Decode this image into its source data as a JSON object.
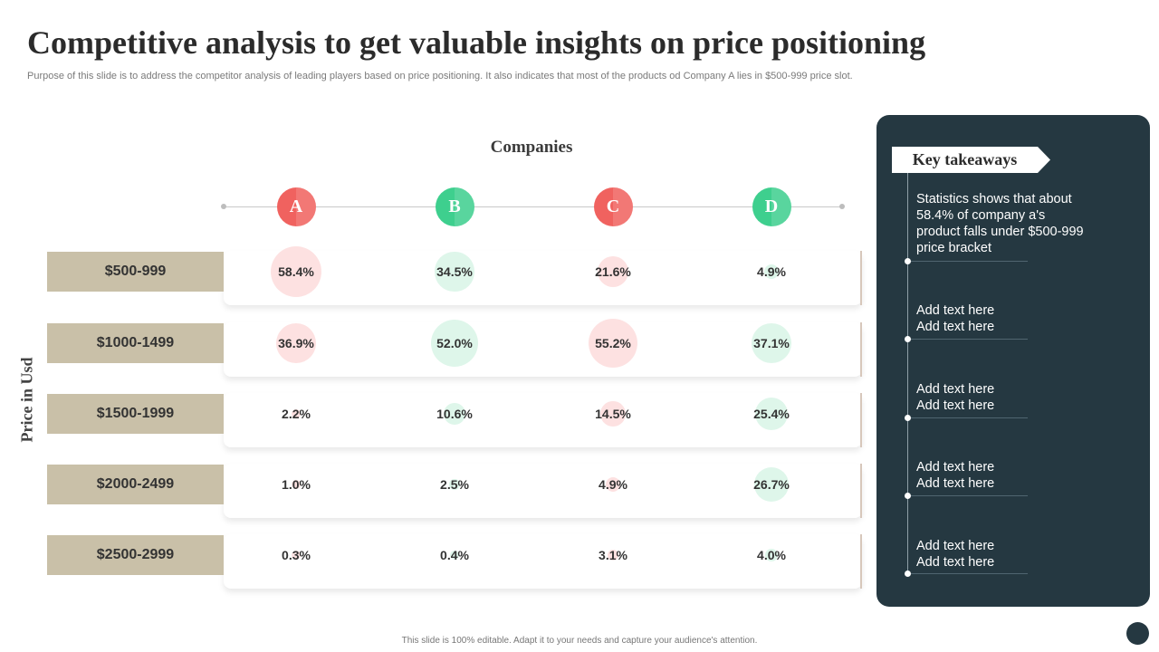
{
  "slide": {
    "title": "Competitive analysis to get valuable insights on price positioning",
    "subtitle": "Purpose of this slide is to address the competitor analysis of leading players based on  price positioning. It also indicates that most of the products od Company A lies in $500-999 price slot.",
    "footer": "This slide is 100% editable.  Adapt it to your needs and capture your audience's attention."
  },
  "chart_data": {
    "type": "table",
    "title": "Companies",
    "ylabel": "Price in Usd",
    "companies": [
      "A",
      "B",
      "C",
      "D"
    ],
    "company_colors": [
      "#f0625f",
      "#3ecf8e",
      "#f0625f",
      "#3ecf8e"
    ],
    "bubble_colors": [
      "#fde1e1",
      "#def6ea",
      "#fde1e1",
      "#def6ea"
    ],
    "price_ranges": [
      "$500-999",
      "$1000-1499",
      "$1500-1999",
      "$2000-2499",
      "$2500-2999"
    ],
    "unit": "%",
    "values": [
      [
        58.4,
        34.5,
        21.6,
        4.9
      ],
      [
        36.9,
        52.0,
        55.2,
        37.1
      ],
      [
        2.2,
        10.6,
        14.5,
        25.4
      ],
      [
        1.0,
        2.5,
        4.9,
        26.7
      ],
      [
        0.3,
        0.4,
        3.1,
        4.0
      ]
    ],
    "labels": [
      [
        "58.4%",
        "34.5%",
        "21.6%",
        "4.9%"
      ],
      [
        "36.9%",
        "52.0%",
        "55.2%",
        "37.1%"
      ],
      [
        "2.2%",
        "10.6%",
        "14.5%",
        "25.4%"
      ],
      [
        "1.0%",
        "2.5%",
        "4.9%",
        "26.7%"
      ],
      [
        "0.3%",
        "0.4%",
        "3.1%",
        "4.0%"
      ]
    ]
  },
  "takeaways": {
    "title": "Key takeaways",
    "items": [
      [
        "Statistics shows that about",
        "58.4% of company a's",
        "product falls under $500-999",
        "price bracket"
      ],
      [
        "Add text here",
        "Add text here"
      ],
      [
        "Add text here",
        "Add text here"
      ],
      [
        "Add text here",
        "Add text here"
      ],
      [
        "Add text here",
        "Add text here"
      ]
    ]
  }
}
